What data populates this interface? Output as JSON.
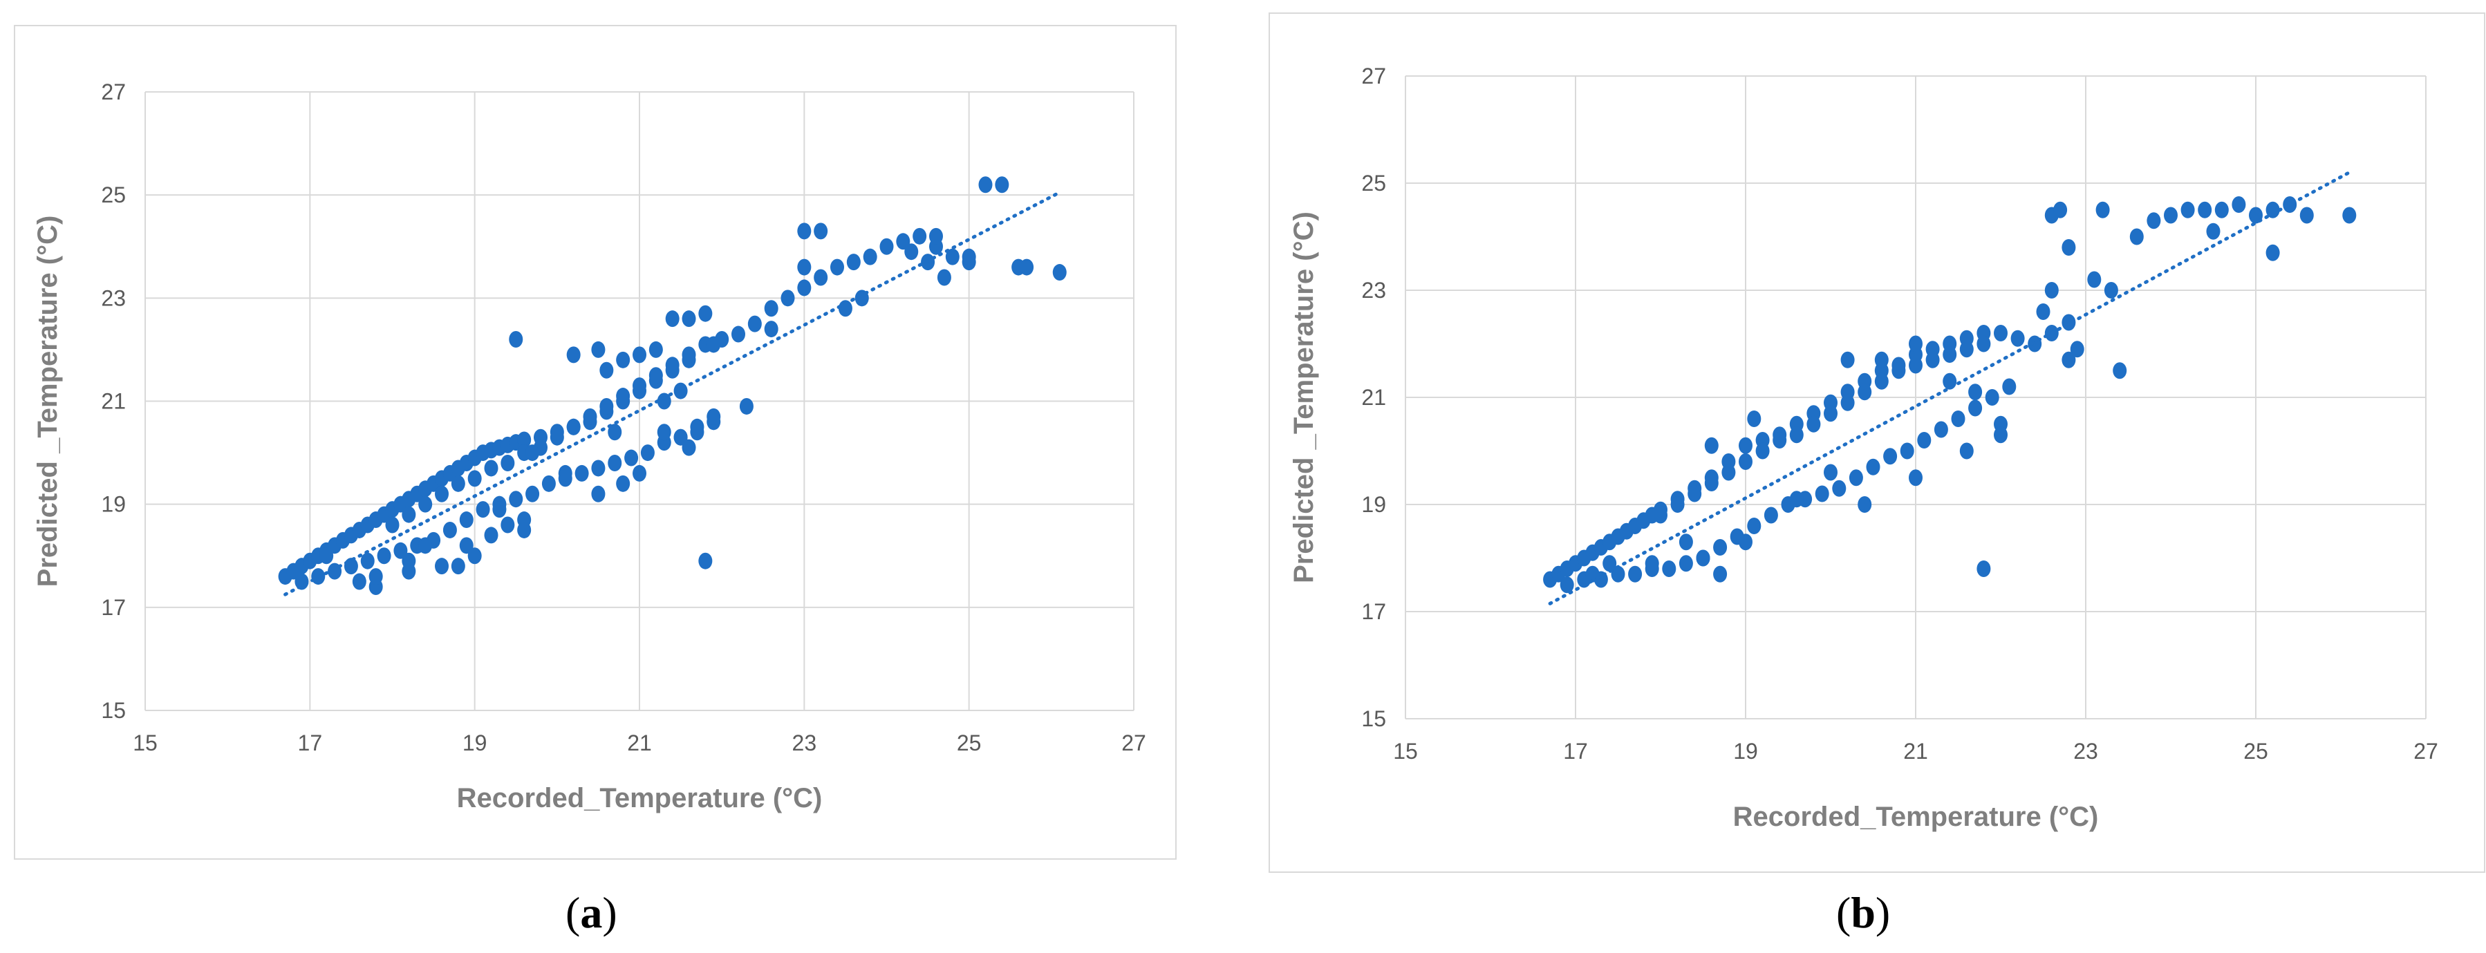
{
  "captions": {
    "a": "a",
    "b": "b"
  },
  "chart_data": [
    {
      "type": "scatter",
      "panel": "a",
      "xlabel": "Recorded_Temperature (°C)",
      "ylabel": "Predicted _Temperature (°C)",
      "xlim": [
        15,
        27
      ],
      "ylim": [
        15,
        27
      ],
      "xticks": [
        15,
        17,
        19,
        21,
        23,
        25,
        27
      ],
      "yticks": [
        15,
        17,
        19,
        21,
        23,
        25,
        27
      ],
      "grid": true,
      "color": "#1f6fc5",
      "trendline": {
        "style": "dotted",
        "x": [
          16.7,
          26.1
        ],
        "y": [
          17.25,
          25.05
        ]
      },
      "points": [
        [
          16.7,
          17.6
        ],
        [
          16.8,
          17.7
        ],
        [
          16.9,
          17.8
        ],
        [
          17.0,
          17.9
        ],
        [
          17.1,
          18.0
        ],
        [
          17.2,
          18.1
        ],
        [
          17.3,
          18.2
        ],
        [
          17.4,
          18.3
        ],
        [
          17.5,
          18.4
        ],
        [
          17.6,
          18.5
        ],
        [
          17.7,
          18.6
        ],
        [
          17.8,
          18.7
        ],
        [
          17.9,
          18.8
        ],
        [
          18.0,
          18.9
        ],
        [
          18.1,
          19.0
        ],
        [
          18.2,
          19.1
        ],
        [
          18.3,
          19.2
        ],
        [
          18.4,
          19.3
        ],
        [
          18.5,
          19.4
        ],
        [
          18.6,
          19.5
        ],
        [
          18.7,
          19.6
        ],
        [
          18.8,
          19.7
        ],
        [
          18.9,
          19.8
        ],
        [
          19.0,
          19.9
        ],
        [
          19.1,
          20.0
        ],
        [
          19.2,
          20.05
        ],
        [
          19.3,
          20.1
        ],
        [
          19.4,
          20.15
        ],
        [
          19.5,
          20.2
        ],
        [
          19.6,
          20.25
        ],
        [
          19.8,
          20.3
        ],
        [
          20.0,
          20.4
        ],
        [
          20.2,
          20.5
        ],
        [
          20.4,
          20.6
        ],
        [
          20.6,
          20.8
        ],
        [
          20.8,
          21.0
        ],
        [
          21.0,
          21.2
        ],
        [
          21.2,
          21.4
        ],
        [
          21.4,
          21.6
        ],
        [
          21.6,
          21.8
        ],
        [
          16.9,
          17.5
        ],
        [
          17.1,
          17.6
        ],
        [
          17.3,
          17.7
        ],
        [
          17.5,
          17.8
        ],
        [
          17.7,
          17.9
        ],
        [
          17.9,
          18.0
        ],
        [
          18.1,
          18.1
        ],
        [
          18.3,
          18.2
        ],
        [
          18.5,
          18.3
        ],
        [
          18.7,
          18.5
        ],
        [
          18.9,
          18.7
        ],
        [
          19.1,
          18.9
        ],
        [
          19.3,
          19.0
        ],
        [
          19.5,
          19.1
        ],
        [
          19.7,
          19.2
        ],
        [
          19.9,
          19.4
        ],
        [
          20.1,
          19.5
        ],
        [
          20.3,
          19.6
        ],
        [
          20.5,
          19.7
        ],
        [
          20.7,
          19.8
        ],
        [
          20.9,
          19.9
        ],
        [
          21.1,
          20.0
        ],
        [
          21.3,
          20.2
        ],
        [
          21.5,
          20.3
        ],
        [
          21.7,
          20.4
        ],
        [
          21.9,
          20.6
        ],
        [
          18.0,
          18.6
        ],
        [
          18.2,
          18.8
        ],
        [
          18.4,
          19.0
        ],
        [
          18.6,
          19.2
        ],
        [
          18.8,
          19.4
        ],
        [
          19.0,
          19.5
        ],
        [
          19.2,
          19.7
        ],
        [
          19.4,
          19.8
        ],
        [
          19.6,
          20.0
        ],
        [
          19.8,
          20.1
        ],
        [
          20.0,
          20.3
        ],
        [
          20.2,
          20.5
        ],
        [
          20.4,
          20.7
        ],
        [
          20.6,
          20.9
        ],
        [
          20.8,
          21.1
        ],
        [
          21.0,
          21.3
        ],
        [
          21.2,
          21.5
        ],
        [
          21.4,
          21.7
        ],
        [
          21.6,
          21.9
        ],
        [
          21.8,
          22.1
        ],
        [
          22.0,
          22.2
        ],
        [
          22.2,
          22.3
        ],
        [
          22.4,
          22.5
        ],
        [
          22.6,
          22.8
        ],
        [
          22.8,
          23.0
        ],
        [
          23.0,
          23.2
        ],
        [
          23.2,
          23.4
        ],
        [
          23.4,
          23.6
        ],
        [
          23.6,
          23.7
        ],
        [
          23.8,
          23.8
        ],
        [
          24.0,
          24.0
        ],
        [
          24.2,
          24.1
        ],
        [
          24.4,
          24.2
        ],
        [
          24.6,
          24.0
        ],
        [
          24.8,
          23.8
        ],
        [
          25.0,
          23.7
        ],
        [
          24.3,
          23.9
        ],
        [
          24.5,
          23.7
        ],
        [
          17.8,
          17.4
        ],
        [
          17.8,
          17.6
        ],
        [
          18.2,
          17.7
        ],
        [
          18.6,
          17.8
        ],
        [
          18.8,
          17.8
        ],
        [
          18.9,
          18.2
        ],
        [
          19.2,
          18.4
        ],
        [
          19.4,
          18.6
        ],
        [
          19.6,
          18.7
        ],
        [
          19.3,
          18.9
        ],
        [
          20.1,
          19.6
        ],
        [
          20.5,
          19.2
        ],
        [
          20.8,
          19.4
        ],
        [
          21.0,
          19.6
        ],
        [
          21.3,
          20.4
        ],
        [
          21.5,
          20.3
        ],
        [
          21.7,
          20.5
        ],
        [
          21.9,
          20.7
        ],
        [
          22.3,
          20.9
        ],
        [
          21.6,
          20.1
        ],
        [
          20.8,
          21.8
        ],
        [
          21.0,
          21.9
        ],
        [
          21.2,
          22.0
        ],
        [
          21.4,
          22.6
        ],
        [
          21.6,
          22.6
        ],
        [
          21.8,
          22.7
        ],
        [
          20.6,
          21.6
        ],
        [
          21.9,
          22.1
        ],
        [
          21.5,
          21.2
        ],
        [
          21.3,
          21.0
        ],
        [
          19.5,
          22.2
        ],
        [
          21.8,
          17.9
        ],
        [
          22.6,
          22.4
        ],
        [
          23.0,
          23.6
        ],
        [
          23.0,
          24.3
        ],
        [
          23.2,
          24.3
        ],
        [
          23.5,
          22.8
        ],
        [
          23.7,
          23.0
        ],
        [
          25.2,
          25.2
        ],
        [
          25.4,
          25.2
        ],
        [
          25.6,
          23.6
        ],
        [
          25.7,
          23.6
        ],
        [
          26.1,
          23.5
        ],
        [
          25.0,
          23.8
        ],
        [
          24.7,
          23.4
        ],
        [
          24.6,
          24.2
        ],
        [
          20.2,
          21.9
        ],
        [
          20.5,
          22.0
        ],
        [
          19.0,
          18.0
        ],
        [
          19.6,
          18.5
        ],
        [
          18.2,
          17.9
        ],
        [
          17.6,
          17.5
        ],
        [
          18.4,
          18.2
        ],
        [
          17.2,
          18.0
        ],
        [
          19.7,
          20.0
        ],
        [
          20.7,
          20.4
        ]
      ]
    },
    {
      "type": "scatter",
      "panel": "b",
      "xlabel": "Recorded_Temperature (°C)",
      "ylabel": "Predicted _Temperature (°C)",
      "xlim": [
        15,
        27
      ],
      "ylim": [
        15,
        27
      ],
      "xticks": [
        15,
        17,
        19,
        21,
        23,
        25,
        27
      ],
      "yticks": [
        15,
        17,
        19,
        21,
        23,
        25,
        27
      ],
      "grid": true,
      "color": "#1f6fc5",
      "trendline": {
        "style": "dotted",
        "x": [
          16.7,
          26.1
        ],
        "y": [
          17.15,
          25.2
        ]
      },
      "points": [
        [
          16.7,
          17.6
        ],
        [
          16.8,
          17.7
        ],
        [
          16.9,
          17.8
        ],
        [
          17.0,
          17.9
        ],
        [
          17.1,
          18.0
        ],
        [
          17.2,
          18.1
        ],
        [
          17.3,
          18.2
        ],
        [
          17.4,
          18.3
        ],
        [
          17.5,
          18.4
        ],
        [
          17.6,
          18.5
        ],
        [
          17.7,
          18.6
        ],
        [
          17.8,
          18.7
        ],
        [
          17.9,
          18.8
        ],
        [
          18.0,
          18.9
        ],
        [
          18.2,
          19.1
        ],
        [
          18.4,
          19.3
        ],
        [
          18.6,
          19.5
        ],
        [
          18.8,
          19.8
        ],
        [
          19.0,
          20.1
        ],
        [
          19.2,
          20.2
        ],
        [
          19.4,
          20.3
        ],
        [
          19.6,
          20.5
        ],
        [
          19.8,
          20.7
        ],
        [
          20.0,
          20.9
        ],
        [
          20.2,
          21.1
        ],
        [
          20.4,
          21.3
        ],
        [
          20.6,
          21.5
        ],
        [
          20.8,
          21.6
        ],
        [
          21.0,
          21.8
        ],
        [
          21.2,
          21.9
        ],
        [
          21.4,
          22.0
        ],
        [
          21.6,
          22.1
        ],
        [
          21.8,
          22.2
        ],
        [
          22.0,
          22.2
        ],
        [
          22.2,
          22.1
        ],
        [
          22.4,
          22.0
        ],
        [
          22.6,
          22.2
        ],
        [
          22.8,
          22.4
        ],
        [
          16.9,
          17.5
        ],
        [
          17.1,
          17.6
        ],
        [
          17.3,
          17.6
        ],
        [
          17.5,
          17.7
        ],
        [
          17.7,
          17.7
        ],
        [
          17.9,
          17.8
        ],
        [
          18.1,
          17.8
        ],
        [
          18.3,
          17.9
        ],
        [
          18.5,
          18.0
        ],
        [
          18.7,
          18.2
        ],
        [
          18.9,
          18.4
        ],
        [
          19.1,
          18.6
        ],
        [
          19.3,
          18.8
        ],
        [
          19.5,
          19.0
        ],
        [
          19.7,
          19.1
        ],
        [
          19.9,
          19.2
        ],
        [
          20.1,
          19.3
        ],
        [
          20.3,
          19.5
        ],
        [
          20.5,
          19.7
        ],
        [
          20.7,
          19.9
        ],
        [
          20.9,
          20.0
        ],
        [
          21.1,
          20.2
        ],
        [
          21.3,
          20.4
        ],
        [
          21.5,
          20.6
        ],
        [
          21.7,
          20.8
        ],
        [
          21.9,
          21.0
        ],
        [
          22.1,
          21.2
        ],
        [
          18.0,
          18.8
        ],
        [
          18.2,
          19.0
        ],
        [
          18.4,
          19.2
        ],
        [
          18.6,
          19.4
        ],
        [
          18.8,
          19.6
        ],
        [
          19.0,
          19.8
        ],
        [
          19.2,
          20.0
        ],
        [
          19.4,
          20.2
        ],
        [
          19.6,
          20.3
        ],
        [
          19.8,
          20.5
        ],
        [
          20.0,
          20.7
        ],
        [
          20.2,
          20.9
        ],
        [
          20.4,
          21.1
        ],
        [
          20.6,
          21.3
        ],
        [
          20.8,
          21.5
        ],
        [
          21.0,
          21.6
        ],
        [
          21.2,
          21.7
        ],
        [
          21.4,
          21.8
        ],
        [
          21.6,
          21.9
        ],
        [
          21.8,
          22.0
        ],
        [
          22.5,
          22.6
        ],
        [
          22.6,
          23.0
        ],
        [
          22.8,
          23.8
        ],
        [
          22.6,
          24.4
        ],
        [
          22.7,
          24.5
        ],
        [
          23.1,
          23.2
        ],
        [
          23.3,
          23.0
        ],
        [
          23.6,
          24.0
        ],
        [
          23.8,
          24.3
        ],
        [
          24.0,
          24.4
        ],
        [
          24.2,
          24.5
        ],
        [
          24.4,
          24.5
        ],
        [
          24.6,
          24.5
        ],
        [
          24.8,
          24.6
        ],
        [
          24.5,
          24.1
        ],
        [
          25.0,
          24.4
        ],
        [
          25.2,
          24.5
        ],
        [
          25.4,
          24.6
        ],
        [
          25.6,
          24.4
        ],
        [
          25.2,
          23.7
        ],
        [
          26.1,
          24.4
        ],
        [
          23.2,
          24.5
        ],
        [
          23.4,
          21.5
        ],
        [
          22.9,
          21.9
        ],
        [
          22.8,
          21.7
        ],
        [
          21.8,
          17.8
        ],
        [
          18.7,
          17.7
        ],
        [
          18.5,
          18.0
        ],
        [
          18.3,
          18.3
        ],
        [
          17.9,
          17.9
        ],
        [
          19.6,
          19.1
        ],
        [
          20.0,
          19.6
        ],
        [
          20.4,
          19.0
        ],
        [
          21.0,
          19.5
        ],
        [
          21.6,
          20.0
        ],
        [
          22.0,
          20.5
        ],
        [
          22.0,
          20.3
        ],
        [
          20.6,
          21.7
        ],
        [
          20.2,
          21.7
        ],
        [
          21.0,
          22.0
        ],
        [
          21.4,
          21.3
        ],
        [
          21.7,
          21.1
        ],
        [
          19.1,
          20.6
        ],
        [
          18.6,
          20.1
        ],
        [
          19.0,
          18.3
        ],
        [
          17.4,
          17.9
        ],
        [
          17.2,
          17.7
        ]
      ]
    }
  ]
}
